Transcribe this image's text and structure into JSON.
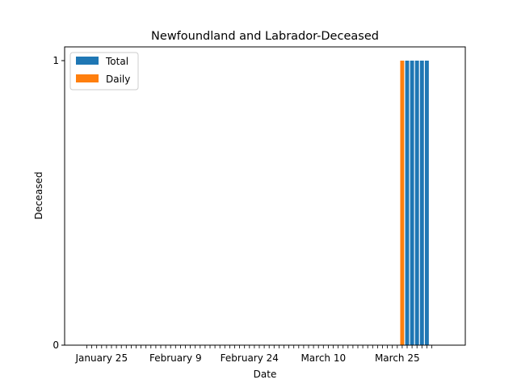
{
  "chart_data": {
    "type": "bar",
    "title": "Newfoundland and Labrador-Deceased",
    "xlabel": "Date",
    "ylabel": "Deceased",
    "ylim": [
      0,
      1
    ],
    "yticks": [
      0,
      1
    ],
    "x_start": "January 22",
    "x_end": "April 1",
    "x_tick_labels": [
      {
        "date": "January 25",
        "label": "January 25"
      },
      {
        "date": "February 9",
        "label": "February 9"
      },
      {
        "date": "February 24",
        "label": "February 24"
      },
      {
        "date": "March 10",
        "label": "March 10"
      },
      {
        "date": "March 25",
        "label": "March 25"
      }
    ],
    "legend": {
      "placement": "top-left",
      "entries": [
        "Total",
        "Daily"
      ]
    },
    "colors": {
      "Total": "#1f77b4",
      "Daily": "#ff7f0e"
    },
    "series": [
      {
        "name": "Total",
        "points": [
          {
            "x": "March 27",
            "y": 1
          },
          {
            "x": "March 28",
            "y": 1
          },
          {
            "x": "March 29",
            "y": 1
          },
          {
            "x": "March 30",
            "y": 1
          },
          {
            "x": "March 31",
            "y": 1
          }
        ]
      },
      {
        "name": "Daily",
        "points": [
          {
            "x": "March 26",
            "y": 1
          }
        ]
      }
    ]
  }
}
